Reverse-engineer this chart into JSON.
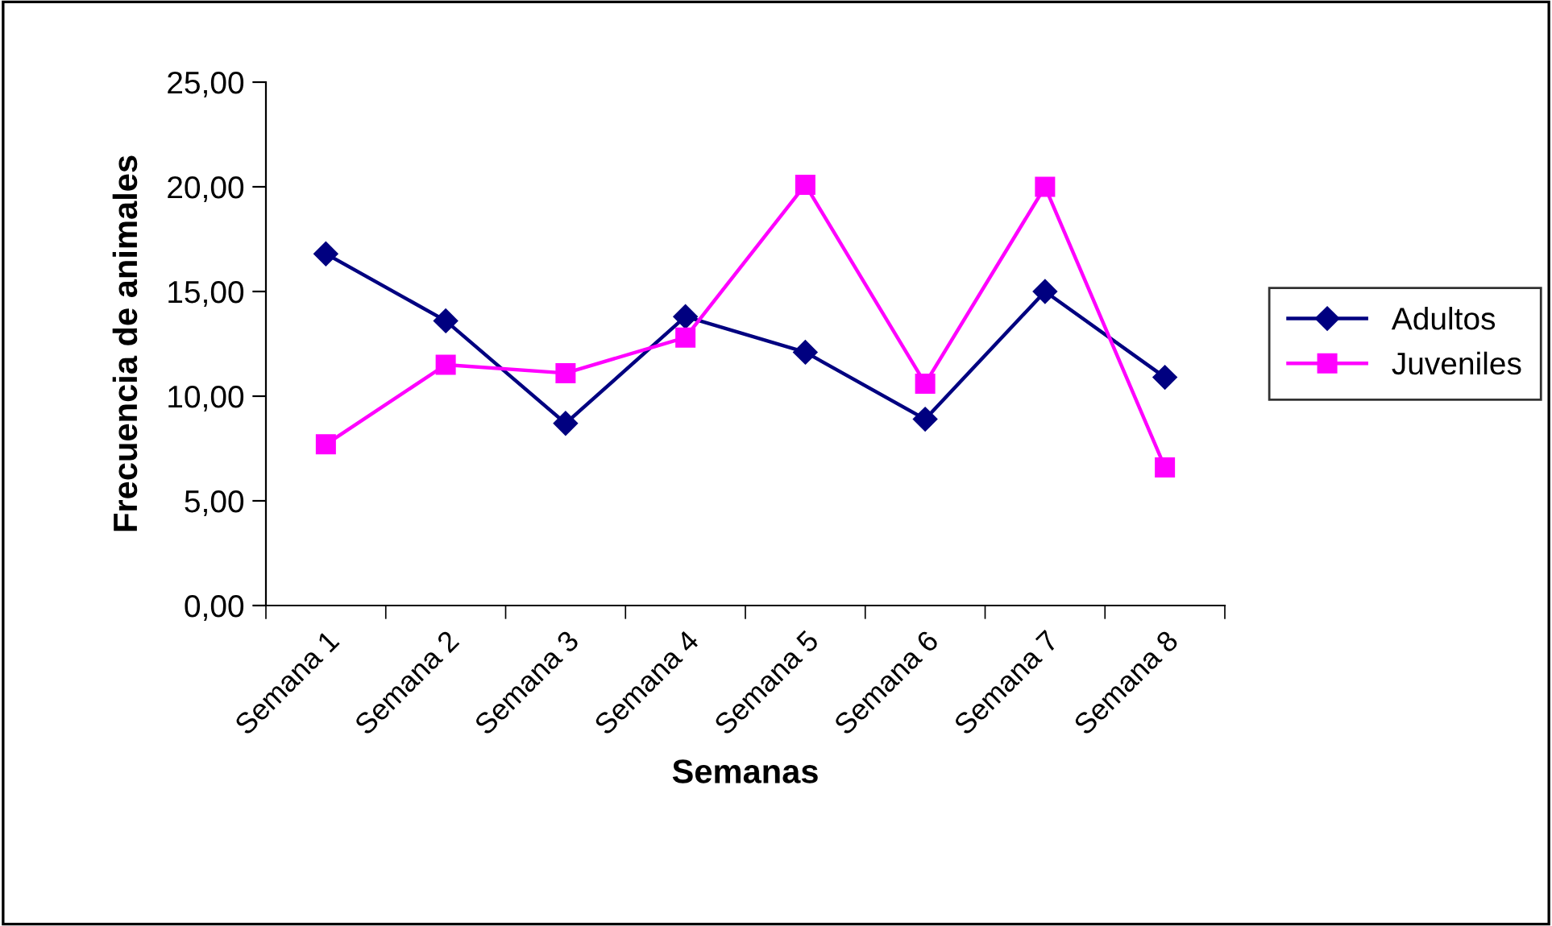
{
  "chart_data": {
    "type": "line",
    "xlabel": "Semanas",
    "ylabel": "Frecuencia de animales",
    "categories": [
      "Semana 1",
      "Semana 2",
      "Semana 3",
      "Semana 4",
      "Semana 5",
      "Semana 6",
      "Semana 7",
      "Semana 8"
    ],
    "series": [
      {
        "name": "Adultos",
        "color": "#000080",
        "marker": "diamond",
        "values": [
          16.8,
          13.6,
          8.7,
          13.8,
          12.1,
          8.9,
          15.0,
          10.9
        ]
      },
      {
        "name": "Juveniles",
        "color": "#ff00ff",
        "marker": "square",
        "values": [
          7.7,
          11.5,
          11.1,
          12.8,
          20.1,
          10.6,
          20.0,
          6.6
        ]
      }
    ],
    "ylim": [
      0,
      25
    ],
    "yticks": [
      {
        "value": 0,
        "label": "0,00"
      },
      {
        "value": 5,
        "label": "5,00"
      },
      {
        "value": 10,
        "label": "10,00"
      },
      {
        "value": 15,
        "label": "15,00"
      },
      {
        "value": 20,
        "label": "20,00"
      },
      {
        "value": 25,
        "label": "25,00"
      }
    ],
    "grid": false,
    "legend": "right",
    "line_style": "solid"
  }
}
